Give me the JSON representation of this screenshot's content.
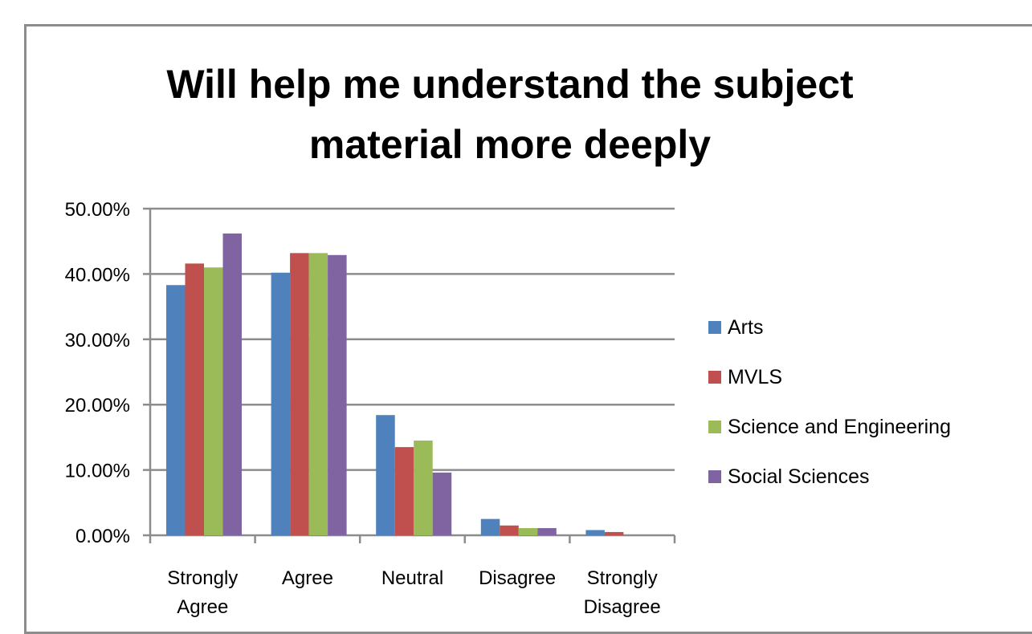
{
  "chart_data": {
    "type": "bar",
    "title_lines": [
      "Will help me understand the subject",
      "material more deeply"
    ],
    "xlabel": "",
    "ylabel": "",
    "categories": [
      [
        "Strongly",
        "Agree"
      ],
      [
        "Agree"
      ],
      [
        "Neutral"
      ],
      [
        "Disagree"
      ],
      [
        "Strongly",
        "Disagree"
      ]
    ],
    "series": [
      {
        "name": "Arts",
        "color": "#4F81BD",
        "values": [
          38.3,
          40.2,
          18.4,
          2.5,
          0.8
        ]
      },
      {
        "name": "MVLS",
        "color": "#C0504D",
        "values": [
          41.6,
          43.2,
          13.5,
          1.5,
          0.5
        ]
      },
      {
        "name": "Science and Engineering",
        "color": "#9BBB59",
        "values": [
          41.0,
          43.2,
          14.5,
          1.1,
          0.0
        ]
      },
      {
        "name": "Social Sciences",
        "color": "#8064A2",
        "values": [
          46.2,
          42.9,
          9.6,
          1.1,
          0.0
        ]
      }
    ],
    "ylim": [
      0,
      50
    ],
    "yticks": [
      "0.00%",
      "10.00%",
      "20.00%",
      "30.00%",
      "40.00%",
      "50.00%"
    ],
    "grid": true,
    "legend_position": "right"
  }
}
